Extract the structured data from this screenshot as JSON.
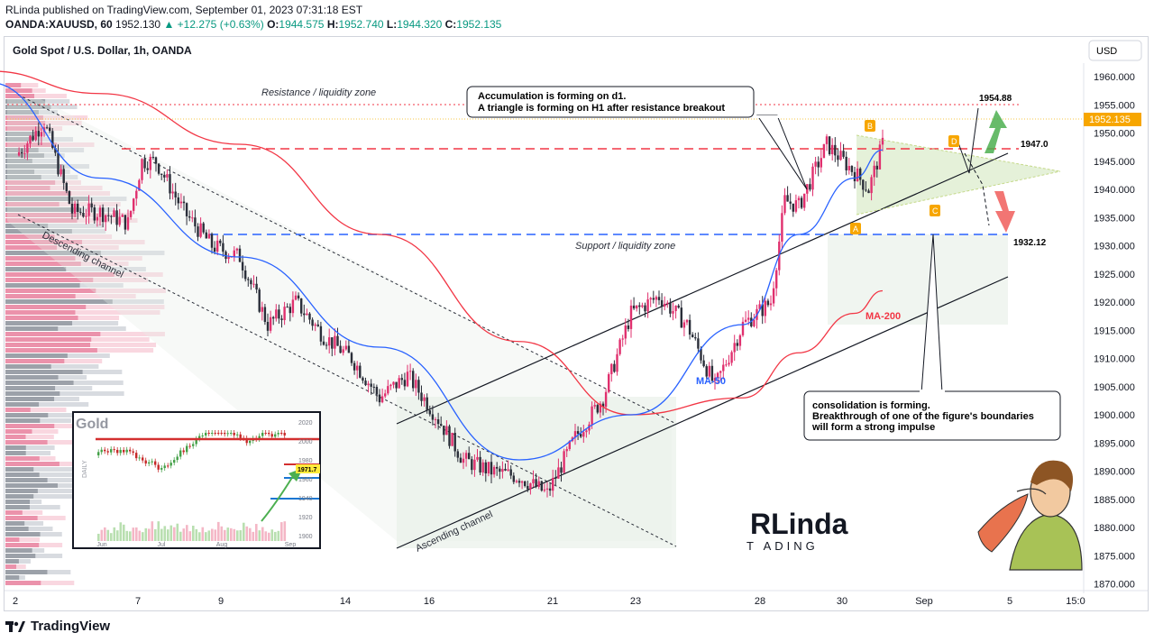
{
  "header": {
    "line1": "RLinda published on TradingView.com, September 01, 2023 07:31:18 EST",
    "symbol": "OANDA:XAUUSD, 60",
    "last": "1952.130",
    "change": "▲ +12.275 (+0.63%)",
    "o_label": "O:",
    "o": "1944.575",
    "h_label": "H:",
    "h": "1952.740",
    "l_label": "L:",
    "l": "1944.320",
    "c_label": "C:",
    "c": "1952.135"
  },
  "footer": {
    "brand": "TradingView"
  },
  "colors": {
    "up": "#089981",
    "bull_candle": "#e0306e",
    "bear_candle": "#2a2e39",
    "ma50": "#2962ff",
    "ma200": "#f23645",
    "resistance": "#f23645",
    "support": "#2962ff",
    "price_badge": "#f7a600",
    "label_box": "#ffffff"
  },
  "chart_data": {
    "type": "line",
    "title": "Gold Spot / U.S. Dollar, 1h, OANDA",
    "currency_button": "USD",
    "y_ticks": [
      "1960.000",
      "1955.000",
      "1950.000",
      "1945.000",
      "1940.000",
      "1935.000",
      "1930.000",
      "1925.000",
      "1920.000",
      "1915.000",
      "1910.000",
      "1905.000",
      "1900.000",
      "1895.000",
      "1890.000",
      "1885.000",
      "1880.000",
      "1875.000",
      "1870.000"
    ],
    "ylim": [
      1869,
      1964
    ],
    "x_ticks": [
      "2",
      "7",
      "9",
      "14",
      "16",
      "21",
      "23",
      "28",
      "30",
      "Sep",
      "5",
      "15:0"
    ],
    "last_price_label": "1952.135",
    "levels": [
      {
        "label": "1954.88",
        "value": 1954.88
      },
      {
        "label": "1947.0",
        "value": 1947.0
      },
      {
        "label": "1932.12",
        "value": 1932.12
      }
    ],
    "annotations": {
      "resistance_zone": "Resistance / liquidity zone",
      "support_zone": "Support / liquidity zone",
      "descending_channel": "Descending channel",
      "ascending_channel": "Ascending channel",
      "ma50": "MA-50",
      "ma200": "MA-200",
      "box1_line1": "Accumulation is forming on d1.",
      "box1_line2": "A triangle is forming on H1 after resistance breakout",
      "box2_line1": "consolidation is forming.",
      "box2_line2": "Breakthrough of one of the figure's boundaries",
      "box2_line3": "will form a strong impulse",
      "pt_a": "A",
      "pt_b": "B",
      "pt_c": "C",
      "pt_d": "D"
    },
    "price_path": [
      {
        "x": 2,
        "y": 1946
      },
      {
        "x": 3,
        "y": 1952
      },
      {
        "x": 4,
        "y": 1936
      },
      {
        "x": 5,
        "y": 1936
      },
      {
        "x": 6,
        "y": 1934
      },
      {
        "x": 6.5,
        "y": 1945
      },
      {
        "x": 7,
        "y": 1945
      },
      {
        "x": 8,
        "y": 1936
      },
      {
        "x": 9,
        "y": 1930
      },
      {
        "x": 10,
        "y": 1928
      },
      {
        "x": 11,
        "y": 1916
      },
      {
        "x": 12,
        "y": 1920
      },
      {
        "x": 13,
        "y": 1914
      },
      {
        "x": 14,
        "y": 1910
      },
      {
        "x": 15,
        "y": 1903
      },
      {
        "x": 16,
        "y": 1907
      },
      {
        "x": 17,
        "y": 1900
      },
      {
        "x": 18,
        "y": 1892
      },
      {
        "x": 19,
        "y": 1890
      },
      {
        "x": 20,
        "y": 1889
      },
      {
        "x": 21,
        "y": 1886
      },
      {
        "x": 22,
        "y": 1896
      },
      {
        "x": 23,
        "y": 1903
      },
      {
        "x": 24,
        "y": 1918
      },
      {
        "x": 25,
        "y": 1921
      },
      {
        "x": 26,
        "y": 1916
      },
      {
        "x": 27,
        "y": 1905
      },
      {
        "x": 28,
        "y": 1916
      },
      {
        "x": 29,
        "y": 1920
      },
      {
        "x": 29.5,
        "y": 1938
      },
      {
        "x": 30,
        "y": 1937
      },
      {
        "x": 31,
        "y": 1948
      },
      {
        "x": 32,
        "y": 1943
      },
      {
        "x": 32.5,
        "y": 1940
      },
      {
        "x": 33,
        "y": 1948
      }
    ],
    "series": [
      {
        "name": "MA-50",
        "x": [
          1,
          5,
          10,
          15,
          20,
          24,
          28,
          30,
          32,
          33
        ],
        "values": [
          1959,
          1942,
          1928,
          1912,
          1892,
          1900,
          1916,
          1932,
          1942,
          1947
        ]
      },
      {
        "name": "MA-200",
        "x": [
          1,
          5,
          10,
          15,
          20,
          24,
          28,
          30,
          32,
          33
        ],
        "values": [
          1961,
          1957,
          1948,
          1932,
          1913,
          1900,
          1903,
          1911,
          1918,
          1922
        ]
      }
    ],
    "inset": {
      "title": "Gold",
      "side_label": "DAILY",
      "y_ticks": [
        "2020",
        "2000",
        "1980",
        "1960",
        "1940",
        "1920",
        "1900"
      ],
      "x_ticks": [
        "Jun",
        "Jul",
        "Aug",
        "Sep"
      ],
      "last_label": "1971.7"
    },
    "watermark": {
      "logo": "RLinda",
      "sub": "T  ADING"
    }
  }
}
